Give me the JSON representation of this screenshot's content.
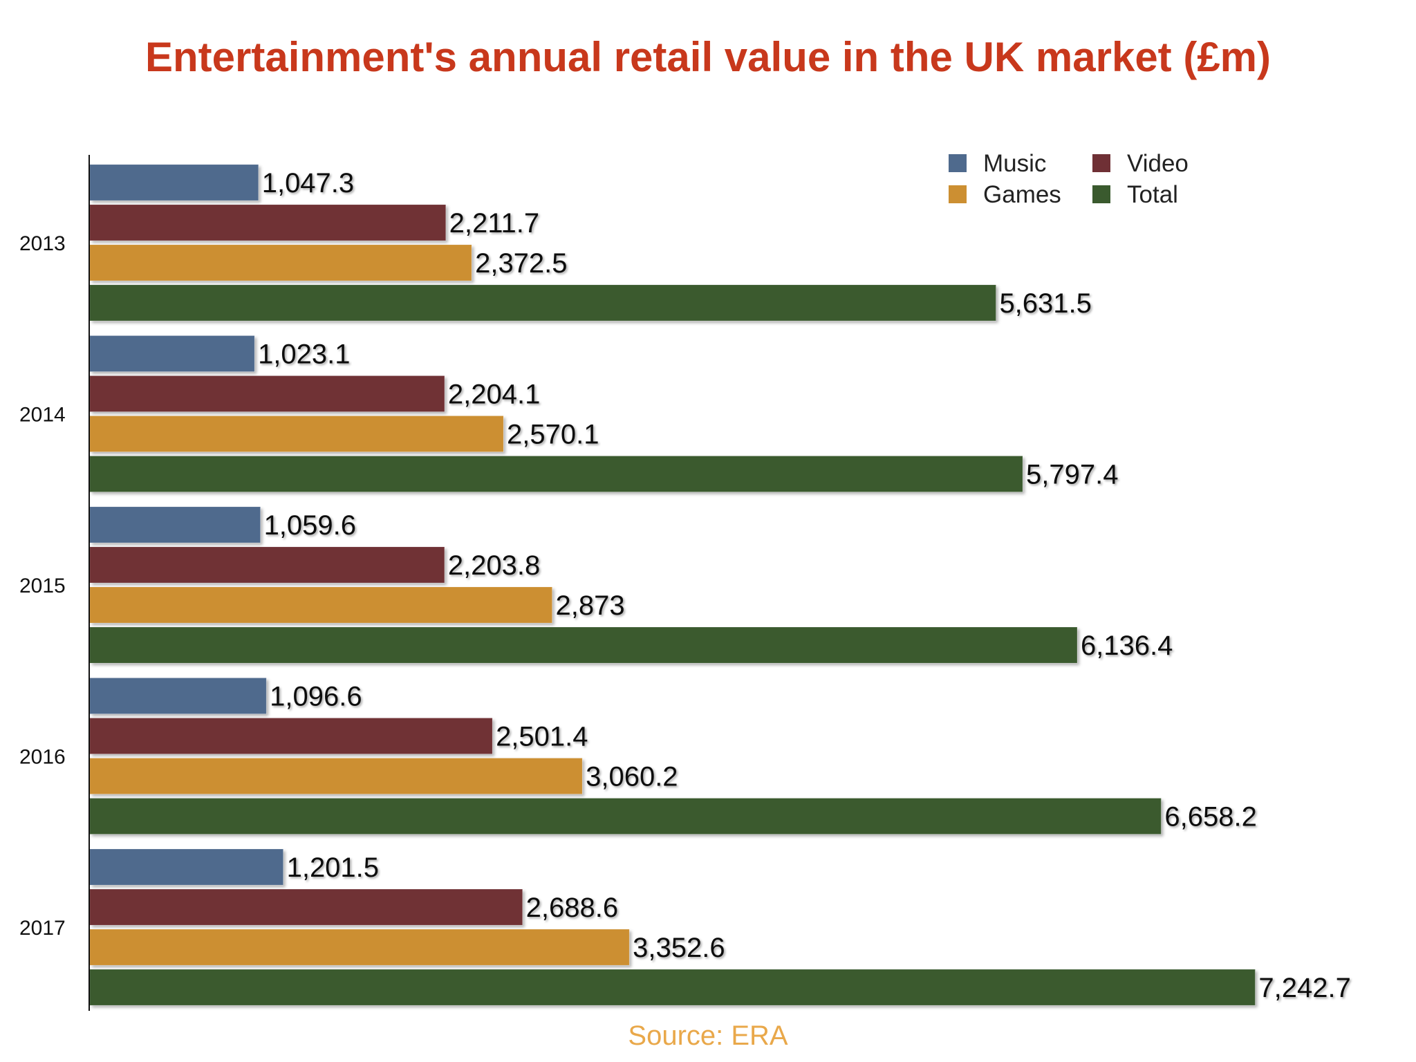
{
  "chart_data": {
    "type": "bar",
    "orientation": "horizontal",
    "title": "Entertainment's annual retail value in the UK market (£m)",
    "source": "Source: ERA",
    "categories": [
      "2013",
      "2014",
      "2015",
      "2016",
      "2017"
    ],
    "series": [
      {
        "name": "Music",
        "color": "#4f6a8d",
        "values": [
          1047.3,
          1023.1,
          1059.6,
          1096.6,
          1201.5
        ],
        "labels": [
          "1,047.3",
          "1,023.1",
          "1,059.6",
          "1,096.6",
          "1,201.5"
        ]
      },
      {
        "name": "Video",
        "color": "#6f3035",
        "values": [
          2211.7,
          2204.1,
          2203.8,
          2501.4,
          2688.6
        ],
        "labels": [
          "2,211.7",
          "2,204.1",
          "2,203.8",
          "2,501.4",
          "2,688.6"
        ]
      },
      {
        "name": "Games",
        "color": "#cc8f32",
        "values": [
          2372.5,
          2570.1,
          2873,
          3060.2,
          3352.6
        ],
        "labels": [
          "2,372.5",
          "2,570.1",
          "2,873",
          "3,060.2",
          "3,352.6"
        ]
      },
      {
        "name": "Total",
        "color": "#3a5a2e",
        "values": [
          5631.5,
          5797.4,
          6136.4,
          6658.2,
          7242.7
        ],
        "labels": [
          "5,631.5",
          "5,797.4",
          "6,136.4",
          "6,658.2",
          "7,242.7"
        ]
      }
    ],
    "xlim": [
      0,
      9000
    ],
    "grid": false,
    "legend_position": "top-right"
  }
}
